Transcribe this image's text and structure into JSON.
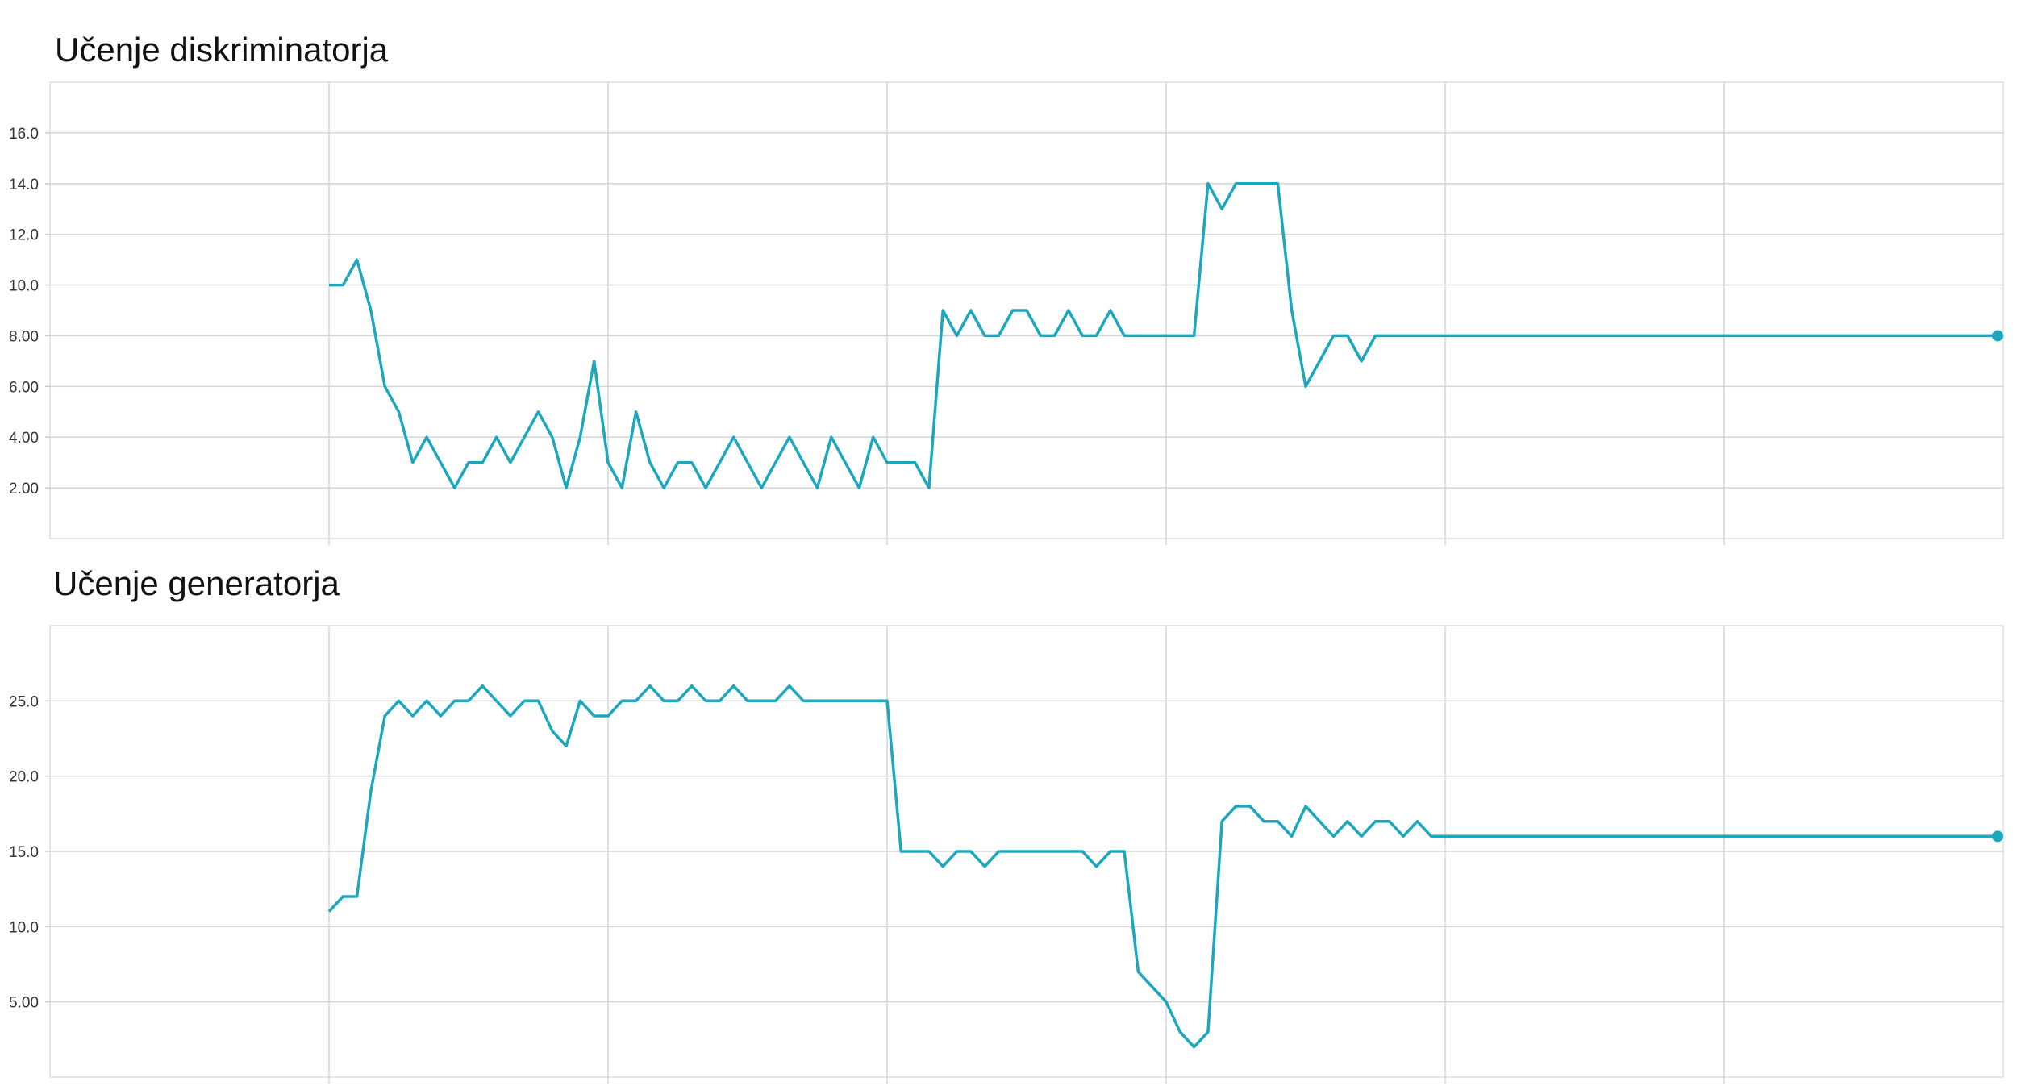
{
  "chart_data": [
    {
      "type": "line",
      "title": "Učenje diskriminatorja",
      "xlabel": "",
      "ylabel": "",
      "ylim": [
        0,
        18
      ],
      "y_ticks": [
        2,
        4,
        6,
        8,
        10,
        12,
        14,
        16
      ],
      "y_tick_labels": [
        "2.00",
        "4.00",
        "6.00",
        "8.00",
        "10.0",
        "12.0",
        "14.0",
        "16.0"
      ],
      "xlim": [
        0,
        7
      ],
      "x_gridlines": [
        1,
        2,
        3,
        4,
        5,
        6
      ],
      "x_tick_labels": [],
      "grid": true,
      "line_color": "#1ba7bd",
      "end_marker": true,
      "series": [
        {
          "x": [
            1.0,
            1.05,
            1.1,
            1.15,
            1.2,
            1.25,
            1.3,
            1.35,
            1.4,
            1.45,
            1.5,
            1.55,
            1.6,
            1.65,
            1.7,
            1.75,
            1.8,
            1.85,
            1.9,
            1.95,
            2.0,
            2.05,
            2.1,
            2.15,
            2.2,
            2.25,
            2.3,
            2.35,
            2.4,
            2.45,
            2.5,
            2.55,
            2.6,
            2.65,
            2.7,
            2.75,
            2.8,
            2.85,
            2.9,
            2.95,
            3.0,
            3.05,
            3.1,
            3.15,
            3.2,
            3.25,
            3.3,
            3.35,
            3.4,
            3.45,
            3.5,
            3.55,
            3.6,
            3.65,
            3.7,
            3.75,
            3.8,
            3.85,
            3.9,
            3.95,
            4.0,
            4.05,
            4.1,
            4.15,
            4.2,
            4.25,
            4.3,
            4.35,
            4.4,
            4.45,
            4.5,
            4.55,
            4.6,
            4.65,
            4.7,
            4.75,
            4.8,
            4.85,
            4.9,
            4.95,
            5.0,
            5.1,
            5.2,
            5.3,
            5.4,
            5.5,
            5.6,
            5.7,
            5.8,
            5.9,
            6.0,
            6.1,
            6.2,
            6.3,
            6.4,
            6.5,
            6.6,
            6.7,
            6.8,
            6.9,
            6.95,
            6.98
          ],
          "y": [
            10,
            10,
            11,
            9,
            6,
            5,
            3,
            4,
            3,
            2,
            3,
            3,
            4,
            3,
            4,
            5,
            4,
            2,
            4,
            7,
            3,
            2,
            5,
            3,
            2,
            3,
            3,
            2,
            3,
            4,
            3,
            2,
            3,
            4,
            3,
            2,
            4,
            3,
            2,
            4,
            3,
            3,
            3,
            2,
            9,
            8,
            9,
            8,
            8,
            9,
            9,
            8,
            8,
            9,
            8,
            8,
            9,
            8,
            8,
            8,
            8,
            8,
            8,
            14,
            13,
            14,
            14,
            14,
            14,
            9,
            6,
            7,
            8,
            8,
            7,
            8,
            8,
            8,
            8,
            8,
            8,
            8,
            8,
            8,
            8,
            8,
            8,
            8,
            8,
            8,
            8,
            8,
            8,
            8,
            8,
            8,
            8,
            8,
            8,
            8,
            8,
            8
          ]
        }
      ]
    },
    {
      "type": "line",
      "title": "Učenje generatorja",
      "xlabel": "",
      "ylabel": "",
      "ylim": [
        0,
        30
      ],
      "y_ticks": [
        5,
        10,
        15,
        20,
        25
      ],
      "y_tick_labels": [
        "5.00",
        "10.0",
        "15.0",
        "20.0",
        "25.0"
      ],
      "xlim": [
        0,
        7
      ],
      "x_gridlines": [
        1,
        2,
        3,
        4,
        5,
        6
      ],
      "x_tick_labels": [],
      "grid": true,
      "line_color": "#1ba7bd",
      "end_marker": true,
      "series": [
        {
          "x": [
            1.0,
            1.05,
            1.1,
            1.15,
            1.2,
            1.25,
            1.3,
            1.35,
            1.4,
            1.45,
            1.5,
            1.55,
            1.6,
            1.65,
            1.7,
            1.75,
            1.8,
            1.85,
            1.9,
            1.95,
            2.0,
            2.05,
            2.1,
            2.15,
            2.2,
            2.25,
            2.3,
            2.35,
            2.4,
            2.45,
            2.5,
            2.55,
            2.6,
            2.65,
            2.7,
            2.75,
            2.8,
            2.85,
            2.9,
            2.95,
            3.0,
            3.05,
            3.1,
            3.15,
            3.2,
            3.25,
            3.3,
            3.35,
            3.4,
            3.45,
            3.5,
            3.55,
            3.6,
            3.65,
            3.7,
            3.75,
            3.8,
            3.85,
            3.9,
            3.95,
            4.0,
            4.05,
            4.1,
            4.15,
            4.2,
            4.25,
            4.3,
            4.35,
            4.4,
            4.45,
            4.5,
            4.55,
            4.6,
            4.65,
            4.7,
            4.75,
            4.8,
            4.85,
            4.9,
            4.95,
            5.0,
            5.1,
            5.2,
            5.3,
            5.4,
            5.5,
            5.6,
            5.7,
            5.8,
            5.9,
            6.0,
            6.1,
            6.2,
            6.3,
            6.4,
            6.5,
            6.6,
            6.7,
            6.8,
            6.9,
            6.95,
            6.98
          ],
          "y": [
            11,
            12,
            12,
            19,
            24,
            25,
            24,
            25,
            24,
            25,
            25,
            26,
            25,
            24,
            25,
            25,
            23,
            22,
            25,
            24,
            24,
            25,
            25,
            26,
            25,
            25,
            26,
            25,
            25,
            26,
            25,
            25,
            25,
            26,
            25,
            25,
            25,
            25,
            25,
            25,
            25,
            15,
            15,
            15,
            14,
            15,
            15,
            14,
            15,
            15,
            15,
            15,
            15,
            15,
            15,
            14,
            15,
            15,
            7,
            6,
            5,
            3,
            2,
            3,
            17,
            18,
            18,
            17,
            17,
            16,
            18,
            17,
            16,
            17,
            16,
            17,
            17,
            16,
            17,
            16,
            16,
            16,
            16,
            16,
            16,
            16,
            16,
            16,
            16,
            16,
            16,
            16,
            16,
            16,
            16,
            16,
            16,
            16,
            16,
            16,
            16,
            16
          ]
        }
      ]
    }
  ]
}
